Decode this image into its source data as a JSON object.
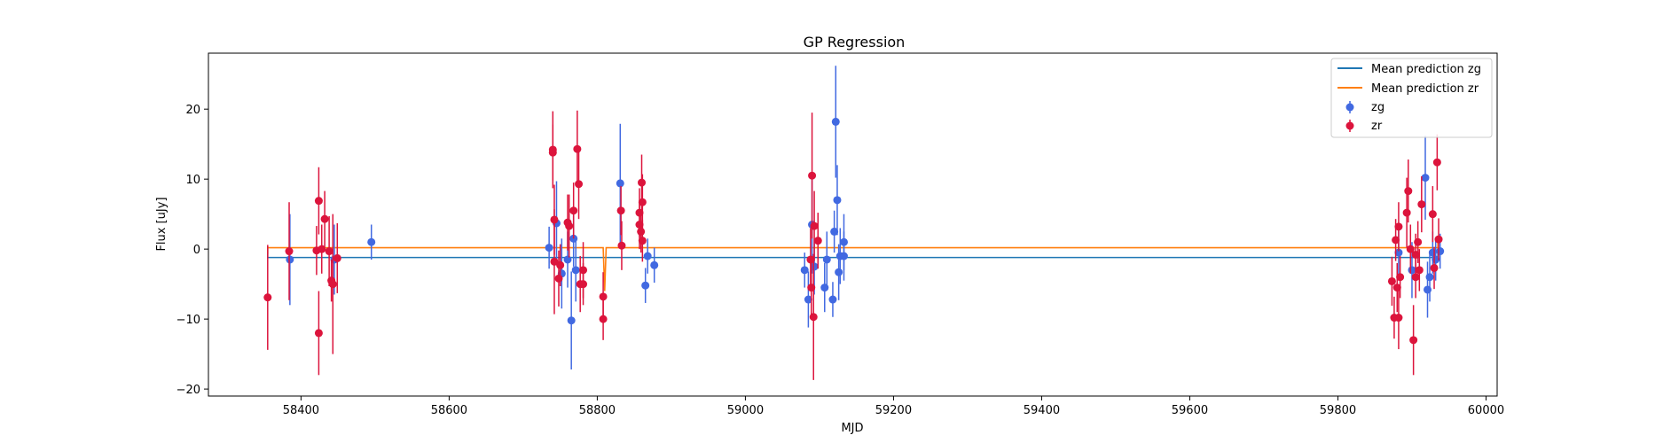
{
  "chart_data": {
    "type": "scatter",
    "title": "GP Regression",
    "xlabel": "MJD",
    "ylabel": "Flux [uJy]",
    "xlim": [
      58275,
      60015
    ],
    "ylim": [
      -21,
      28
    ],
    "xticks": [
      58400,
      58600,
      58800,
      59000,
      59200,
      59400,
      59600,
      59800,
      60000
    ],
    "yticks": [
      -20,
      -10,
      0,
      10,
      20
    ],
    "grid": false,
    "legend_position": "top-right",
    "colors": {
      "zg_line": "#1f77b4",
      "zr_line": "#ff7f0e",
      "zg_points": "#4169e1",
      "zr_points": "#dc143c"
    },
    "lines": [
      {
        "name": "Mean prediction zg",
        "color": "#1f77b4",
        "x": [
          58355,
          58355,
          59935,
          59935
        ],
        "y": [
          0.4,
          -1.2,
          -1.2,
          -0.3
        ]
      },
      {
        "name": "Mean prediction zr",
        "color": "#ff7f0e",
        "x": [
          58355,
          58355,
          58808,
          58808,
          58810,
          58812,
          58812,
          59935,
          59935
        ],
        "y": [
          -0.7,
          0.2,
          0.2,
          0.2,
          -6,
          0.2,
          0.2,
          0.2,
          1.2
        ]
      }
    ],
    "series": [
      {
        "name": "zg",
        "color": "#4169e1",
        "points": [
          {
            "x": 58385,
            "y": -1.5,
            "err": 6.5
          },
          {
            "x": 58445,
            "y": -1.5,
            "err": 5.0
          },
          {
            "x": 58495,
            "y": 1.0,
            "err": 2.5
          },
          {
            "x": 58735,
            "y": 0.2,
            "err": 3.0
          },
          {
            "x": 58745,
            "y": 3.7,
            "err": 6.0
          },
          {
            "x": 58752,
            "y": -3.5,
            "err": 5.0
          },
          {
            "x": 58760,
            "y": -1.5,
            "err": 4.0
          },
          {
            "x": 58765,
            "y": -10.2,
            "err": 7.0
          },
          {
            "x": 58768,
            "y": 1.5,
            "err": 4.0
          },
          {
            "x": 58771,
            "y": -3.0,
            "err": 4.5
          },
          {
            "x": 58831,
            "y": 9.4,
            "err": 8.5
          },
          {
            "x": 58865,
            "y": -5.2,
            "err": 2.5
          },
          {
            "x": 58868,
            "y": -1.0,
            "err": 2.5
          },
          {
            "x": 58877,
            "y": -2.3,
            "err": 2.5
          },
          {
            "x": 59080,
            "y": -3.0,
            "err": 2.5
          },
          {
            "x": 59085,
            "y": -7.2,
            "err": 4.0
          },
          {
            "x": 59090,
            "y": 3.5,
            "err": 7.0
          },
          {
            "x": 59093,
            "y": -2.5,
            "err": 4.0
          },
          {
            "x": 59107,
            "y": -5.5,
            "err": 3.5
          },
          {
            "x": 59110,
            "y": -1.5,
            "err": 4.0
          },
          {
            "x": 59118,
            "y": -7.2,
            "err": 2.5
          },
          {
            "x": 59120,
            "y": 2.5,
            "err": 3.0
          },
          {
            "x": 59122,
            "y": 18.2,
            "err": 8.0
          },
          {
            "x": 59124,
            "y": 7.0,
            "err": 5.0
          },
          {
            "x": 59126,
            "y": -3.3,
            "err": 4.0
          },
          {
            "x": 59128,
            "y": -1.0,
            "err": 4.0
          },
          {
            "x": 59133,
            "y": 1.0,
            "err": 4.0
          },
          {
            "x": 59133,
            "y": -1.0,
            "err": 3.5
          },
          {
            "x": 59882,
            "y": -0.5,
            "err": 4.0
          },
          {
            "x": 59900,
            "y": -3.0,
            "err": 4.0
          },
          {
            "x": 59918,
            "y": 10.2,
            "err": 6.0
          },
          {
            "x": 59921,
            "y": -5.8,
            "err": 4.0
          },
          {
            "x": 59924,
            "y": -4.0,
            "err": 3.5
          },
          {
            "x": 59928,
            "y": -0.5,
            "err": 3.0
          },
          {
            "x": 59932,
            "y": -1.5,
            "err": 3.0
          },
          {
            "x": 59938,
            "y": -0.3,
            "err": 2.5
          }
        ]
      },
      {
        "name": "zr",
        "color": "#dc143c",
        "points": [
          {
            "x": 58355,
            "y": -6.9,
            "err": 7.5
          },
          {
            "x": 58384,
            "y": -0.3,
            "err": 7.0
          },
          {
            "x": 58421,
            "y": -0.2,
            "err": 3.5
          },
          {
            "x": 58424,
            "y": 6.9,
            "err": 4.8
          },
          {
            "x": 58424,
            "y": -12.0,
            "err": 6.0
          },
          {
            "x": 58428,
            "y": 0.0,
            "err": 3.5
          },
          {
            "x": 58432,
            "y": 4.3,
            "err": 4.0
          },
          {
            "x": 58438,
            "y": -0.3,
            "err": 5.0
          },
          {
            "x": 58441,
            "y": -4.5,
            "err": 3.0
          },
          {
            "x": 58443,
            "y": -5.0,
            "err": 10.0
          },
          {
            "x": 58449,
            "y": -1.3,
            "err": 5.0
          },
          {
            "x": 58740,
            "y": 14.2,
            "err": 5.5
          },
          {
            "x": 58740,
            "y": 13.8,
            "err": 4.0
          },
          {
            "x": 58742,
            "y": 4.2,
            "err": 5.0
          },
          {
            "x": 58742,
            "y": -1.8,
            "err": 7.5
          },
          {
            "x": 58748,
            "y": -4.2,
            "err": 4.0
          },
          {
            "x": 58750,
            "y": -2.3,
            "err": 3.0
          },
          {
            "x": 58760,
            "y": 3.8,
            "err": 4.0
          },
          {
            "x": 58762,
            "y": 3.3,
            "err": 4.5
          },
          {
            "x": 58768,
            "y": 5.5,
            "err": 4.0
          },
          {
            "x": 58773,
            "y": 14.3,
            "err": 5.5
          },
          {
            "x": 58775,
            "y": 9.3,
            "err": 5.0
          },
          {
            "x": 58777,
            "y": -5.0,
            "err": 4.0
          },
          {
            "x": 58781,
            "y": -3.0,
            "err": 4.0
          },
          {
            "x": 58781,
            "y": -5.0,
            "err": 3.0
          },
          {
            "x": 58808,
            "y": -6.8,
            "err": 3.5
          },
          {
            "x": 58808,
            "y": -10.0,
            "err": 3.0
          },
          {
            "x": 58832,
            "y": 5.5,
            "err": 3.5
          },
          {
            "x": 58833,
            "y": 0.5,
            "err": 3.5
          },
          {
            "x": 58857,
            "y": 5.2,
            "err": 3.5
          },
          {
            "x": 58857,
            "y": 3.5,
            "err": 3.5
          },
          {
            "x": 58859,
            "y": 2.5,
            "err": 3.0
          },
          {
            "x": 58860,
            "y": 9.5,
            "err": 4.0
          },
          {
            "x": 58861,
            "y": 6.7,
            "err": 4.0
          },
          {
            "x": 58861,
            "y": 1.2,
            "err": 3.0
          },
          {
            "x": 59088,
            "y": -1.5,
            "err": 4.5
          },
          {
            "x": 59089,
            "y": -5.5,
            "err": 4.0
          },
          {
            "x": 59090,
            "y": 10.5,
            "err": 9.0
          },
          {
            "x": 59092,
            "y": -9.7,
            "err": 9.0
          },
          {
            "x": 59093,
            "y": 3.3,
            "err": 5.0
          },
          {
            "x": 59098,
            "y": 1.2,
            "err": 4.0
          },
          {
            "x": 59873,
            "y": -4.6,
            "err": 3.5
          },
          {
            "x": 59876,
            "y": -9.8,
            "err": 3.0
          },
          {
            "x": 59878,
            "y": 1.3,
            "err": 3.0
          },
          {
            "x": 59880,
            "y": -5.5,
            "err": 3.5
          },
          {
            "x": 59882,
            "y": -9.8,
            "err": 4.5
          },
          {
            "x": 59882,
            "y": 3.2,
            "err": 3.5
          },
          {
            "x": 59884,
            "y": -4.0,
            "err": 3.0
          },
          {
            "x": 59893,
            "y": 5.2,
            "err": 5.0
          },
          {
            "x": 59895,
            "y": 8.3,
            "err": 4.5
          },
          {
            "x": 59898,
            "y": 0.0,
            "err": 3.5
          },
          {
            "x": 59902,
            "y": -13.0,
            "err": 5.0
          },
          {
            "x": 59905,
            "y": -0.8,
            "err": 3.0
          },
          {
            "x": 59905,
            "y": -4.0,
            "err": 3.0
          },
          {
            "x": 59908,
            "y": 1.0,
            "err": 3.0
          },
          {
            "x": 59910,
            "y": -3.0,
            "err": 3.0
          },
          {
            "x": 59913,
            "y": 6.4,
            "err": 4.0
          },
          {
            "x": 59928,
            "y": 5.0,
            "err": 4.0
          },
          {
            "x": 59930,
            "y": -2.7,
            "err": 3.0
          },
          {
            "x": 59934,
            "y": 12.4,
            "err": 4.0
          },
          {
            "x": 59936,
            "y": 1.4,
            "err": 3.0
          }
        ]
      }
    ]
  }
}
